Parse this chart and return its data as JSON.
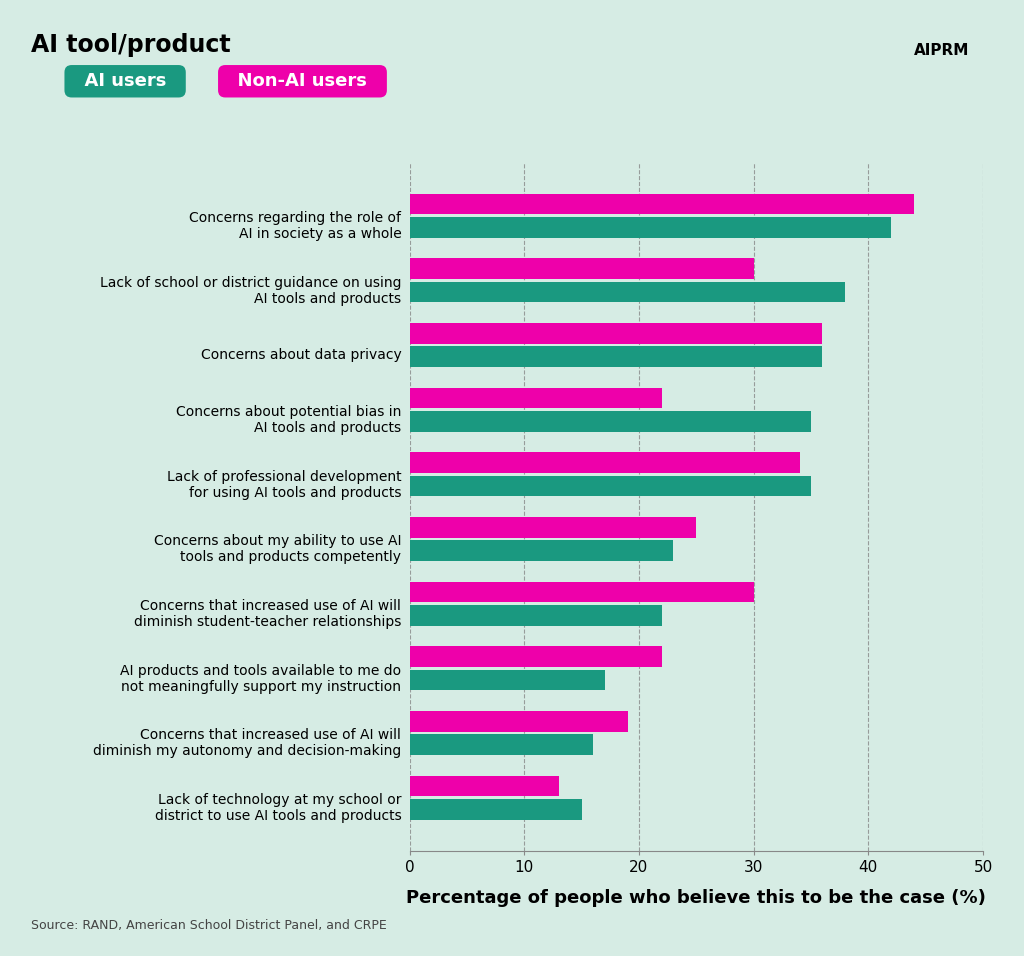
{
  "categories": [
    "Concerns regarding the role of\nAI in society as a whole",
    "Lack of school or district guidance on using\nAI tools and products",
    "Concerns about data privacy",
    "Concerns about potential bias in\nAI tools and products",
    "Lack of professional development\nfor using AI tools and products",
    "Concerns about my ability to use AI\ntools and products competently",
    "Concerns that increased use of AI will\ndiminish student-teacher relationships",
    "AI products and tools available to me do\nnot meaningfully support my instruction",
    "Concerns that increased use of AI will\ndiminish my autonomy and decision-making",
    "Lack of technology at my school or\ndistrict to use AI tools and products"
  ],
  "ai_users": [
    42,
    38,
    36,
    35,
    35,
    23,
    22,
    17,
    16,
    15
  ],
  "non_ai_users": [
    44,
    30,
    36,
    22,
    34,
    25,
    30,
    22,
    19,
    13
  ],
  "ai_color": "#1a9980",
  "non_ai_color": "#ee00aa",
  "background_color": "#d6ece4",
  "title": "AI tool/product",
  "xlabel": "Percentage of people who believe this to be the case (%)",
  "xlim": [
    0,
    50
  ],
  "xticks": [
    0,
    10,
    20,
    30,
    40,
    50
  ],
  "source_text": "Source: RAND, American School District Panel, and CRPE",
  "legend_ai": "AI users",
  "legend_non_ai": "Non-AI users",
  "title_fontsize": 17,
  "xlabel_fontsize": 13,
  "tick_fontsize": 11,
  "label_fontsize": 10,
  "bar_height": 0.32,
  "bar_gap": 0.04
}
